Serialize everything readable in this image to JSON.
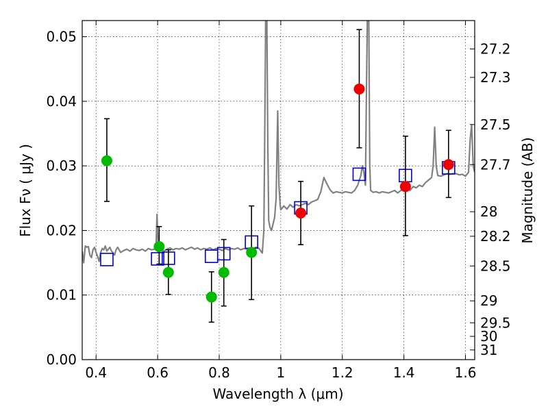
{
  "chart_data": {
    "type": "scatter",
    "xlabel": "Wavelength  λ (μm)",
    "ylabel_left": "Flux  Fν  ( μJy )",
    "ylabel_right": "Magnitude (AB)",
    "xlim": [
      0.355,
      1.63
    ],
    "ylim": [
      0.0,
      0.0525
    ],
    "grid": true,
    "x_ticks": [
      0.4,
      0.6,
      0.8,
      1.0,
      1.2,
      1.4,
      1.6
    ],
    "x_tick_labels": [
      "0.4",
      "0.6",
      "0.8",
      "1",
      "1.2",
      "1.4",
      "1.6"
    ],
    "y_ticks": [
      0.0,
      0.01,
      0.02,
      0.03,
      0.04,
      0.05
    ],
    "y_tick_labels": [
      "0.00",
      "0.01",
      "0.02",
      "0.03",
      "0.04",
      "0.05"
    ],
    "right_ticks": [
      {
        "label": "27.2",
        "flux": 0.0481
      },
      {
        "label": "27.3",
        "flux": 0.0437
      },
      {
        "label": "27.5",
        "flux": 0.0364
      },
      {
        "label": "27.7",
        "flux": 0.0302
      },
      {
        "label": "28",
        "flux": 0.0229
      },
      {
        "label": "28.2",
        "flux": 0.0191
      },
      {
        "label": "28.5",
        "flux": 0.0145
      },
      {
        "label": "29",
        "flux": 0.0091
      },
      {
        "label": "29.5",
        "flux": 0.0057
      },
      {
        "label": "30",
        "flux": 0.0036
      },
      {
        "label": "31",
        "flux": 0.0015
      }
    ],
    "series": [
      {
        "kind": "green_points",
        "color": "#00bb00",
        "points": [
          {
            "x": 0.435,
            "y": 0.0308,
            "err_low": 0.0245,
            "err_high": 0.0373
          },
          {
            "x": 0.605,
            "y": 0.0175,
            "err_low": 0.0148,
            "err_high": 0.0206
          },
          {
            "x": 0.635,
            "y": 0.0135,
            "err_low": 0.0101,
            "err_high": 0.017
          },
          {
            "x": 0.775,
            "y": 0.0097,
            "err_low": 0.0058,
            "err_high": 0.0136
          },
          {
            "x": 0.815,
            "y": 0.0135,
            "err_low": 0.0083,
            "err_high": 0.0186
          },
          {
            "x": 0.905,
            "y": 0.0166,
            "err_low": 0.0093,
            "err_high": 0.0238
          }
        ]
      },
      {
        "kind": "red_points",
        "color": "#ee0000",
        "points": [
          {
            "x": 1.065,
            "y": 0.0227,
            "err_low": 0.0178,
            "err_high": 0.0276
          },
          {
            "x": 1.255,
            "y": 0.0419,
            "err_low": 0.0328,
            "err_high": 0.0511
          },
          {
            "x": 1.405,
            "y": 0.0268,
            "err_low": 0.0192,
            "err_high": 0.0346
          },
          {
            "x": 1.545,
            "y": 0.0302,
            "err_low": 0.0251,
            "err_high": 0.0355
          }
        ]
      },
      {
        "kind": "model_squares",
        "color": "#0000cc",
        "points": [
          {
            "x": 0.435,
            "y": 0.0155
          },
          {
            "x": 0.6,
            "y": 0.0156
          },
          {
            "x": 0.635,
            "y": 0.0157
          },
          {
            "x": 0.775,
            "y": 0.016
          },
          {
            "x": 0.815,
            "y": 0.0164
          },
          {
            "x": 0.905,
            "y": 0.0182
          },
          {
            "x": 1.065,
            "y": 0.0235
          },
          {
            "x": 1.255,
            "y": 0.0287
          },
          {
            "x": 1.405,
            "y": 0.0285
          },
          {
            "x": 1.545,
            "y": 0.0297
          }
        ]
      },
      {
        "kind": "model_spectrum",
        "color": "#808080",
        "points": [
          [
            0.355,
            0.0168
          ],
          [
            0.36,
            0.015
          ],
          [
            0.365,
            0.0176
          ],
          [
            0.37,
            0.0174
          ],
          [
            0.375,
            0.0175
          ],
          [
            0.38,
            0.0162
          ],
          [
            0.385,
            0.0158
          ],
          [
            0.39,
            0.017
          ],
          [
            0.395,
            0.0174
          ],
          [
            0.4,
            0.0166
          ],
          [
            0.405,
            0.016
          ],
          [
            0.41,
            0.0152
          ],
          [
            0.415,
            0.0166
          ],
          [
            0.42,
            0.0172
          ],
          [
            0.425,
            0.017
          ],
          [
            0.43,
            0.0176
          ],
          [
            0.435,
            0.0168
          ],
          [
            0.44,
            0.0171
          ],
          [
            0.445,
            0.0174
          ],
          [
            0.45,
            0.0168
          ],
          [
            0.455,
            0.0166
          ],
          [
            0.46,
            0.0162
          ],
          [
            0.465,
            0.017
          ],
          [
            0.47,
            0.0174
          ],
          [
            0.475,
            0.017
          ],
          [
            0.48,
            0.0166
          ],
          [
            0.49,
            0.0169
          ],
          [
            0.5,
            0.0171
          ],
          [
            0.51,
            0.0168
          ],
          [
            0.52,
            0.0172
          ],
          [
            0.53,
            0.017
          ],
          [
            0.54,
            0.0169
          ],
          [
            0.55,
            0.0171
          ],
          [
            0.56,
            0.0168
          ],
          [
            0.57,
            0.0172
          ],
          [
            0.58,
            0.017
          ],
          [
            0.59,
            0.0171
          ],
          [
            0.595,
            0.0178
          ],
          [
            0.598,
            0.0225
          ],
          [
            0.601,
            0.0185
          ],
          [
            0.605,
            0.017
          ],
          [
            0.61,
            0.0172
          ],
          [
            0.62,
            0.0168
          ],
          [
            0.63,
            0.0171
          ],
          [
            0.64,
            0.0173
          ],
          [
            0.65,
            0.017
          ],
          [
            0.66,
            0.0172
          ],
          [
            0.67,
            0.0171
          ],
          [
            0.68,
            0.0173
          ],
          [
            0.69,
            0.017
          ],
          [
            0.7,
            0.0172
          ],
          [
            0.71,
            0.0174
          ],
          [
            0.72,
            0.0171
          ],
          [
            0.73,
            0.0173
          ],
          [
            0.74,
            0.017
          ],
          [
            0.75,
            0.0172
          ],
          [
            0.76,
            0.0171
          ],
          [
            0.77,
            0.0173
          ],
          [
            0.78,
            0.017
          ],
          [
            0.79,
            0.0172
          ],
          [
            0.8,
            0.0171
          ],
          [
            0.81,
            0.0169
          ],
          [
            0.82,
            0.0172
          ],
          [
            0.83,
            0.017
          ],
          [
            0.84,
            0.0172
          ],
          [
            0.85,
            0.0171
          ],
          [
            0.86,
            0.0173
          ],
          [
            0.87,
            0.017
          ],
          [
            0.88,
            0.0172
          ],
          [
            0.89,
            0.0171
          ],
          [
            0.9,
            0.0173
          ],
          [
            0.91,
            0.0172
          ],
          [
            0.92,
            0.0174
          ],
          [
            0.93,
            0.0172
          ],
          [
            0.935,
            0.0168
          ],
          [
            0.94,
            0.0165
          ],
          [
            0.945,
            0.02
          ],
          [
            0.948,
            0.035
          ],
          [
            0.951,
            0.0525
          ],
          [
            0.955,
            0.0525
          ],
          [
            0.958,
            0.033
          ],
          [
            0.961,
            0.0215
          ],
          [
            0.965,
            0.0205
          ],
          [
            0.97,
            0.02
          ],
          [
            0.975,
            0.021
          ],
          [
            0.98,
            0.022
          ],
          [
            0.985,
            0.025
          ],
          [
            0.99,
            0.0385
          ],
          [
            0.994,
            0.027
          ],
          [
            0.998,
            0.024
          ],
          [
            1.0,
            0.0232
          ],
          [
            1.01,
            0.0238
          ],
          [
            1.02,
            0.0233
          ],
          [
            1.03,
            0.024
          ],
          [
            1.04,
            0.0236
          ],
          [
            1.05,
            0.024
          ],
          [
            1.06,
            0.0238
          ],
          [
            1.07,
            0.024
          ],
          [
            1.08,
            0.0242
          ],
          [
            1.09,
            0.024
          ],
          [
            1.1,
            0.0244
          ],
          [
            1.11,
            0.0246
          ],
          [
            1.12,
            0.0248
          ],
          [
            1.13,
            0.026
          ],
          [
            1.14,
            0.0282
          ],
          [
            1.15,
            0.0272
          ],
          [
            1.16,
            0.0263
          ],
          [
            1.17,
            0.0258
          ],
          [
            1.18,
            0.026
          ],
          [
            1.19,
            0.0259
          ],
          [
            1.2,
            0.0258
          ],
          [
            1.21,
            0.026
          ],
          [
            1.22,
            0.0259
          ],
          [
            1.23,
            0.0258
          ],
          [
            1.24,
            0.0262
          ],
          [
            1.25,
            0.027
          ],
          [
            1.26,
            0.0285
          ],
          [
            1.265,
            0.03
          ],
          [
            1.27,
            0.029
          ],
          [
            1.275,
            0.027
          ],
          [
            1.278,
            0.04
          ],
          [
            1.281,
            0.0525
          ],
          [
            1.286,
            0.0525
          ],
          [
            1.289,
            0.03
          ],
          [
            1.292,
            0.0262
          ],
          [
            1.3,
            0.0259
          ],
          [
            1.31,
            0.026
          ],
          [
            1.32,
            0.0258
          ],
          [
            1.33,
            0.026
          ],
          [
            1.34,
            0.0259
          ],
          [
            1.35,
            0.0258
          ],
          [
            1.36,
            0.026
          ],
          [
            1.37,
            0.0262
          ],
          [
            1.38,
            0.0258
          ],
          [
            1.39,
            0.0262
          ],
          [
            1.4,
            0.0264
          ],
          [
            1.41,
            0.0266
          ],
          [
            1.42,
            0.0262
          ],
          [
            1.43,
            0.0268
          ],
          [
            1.44,
            0.0266
          ],
          [
            1.45,
            0.027
          ],
          [
            1.46,
            0.0268
          ],
          [
            1.47,
            0.0274
          ],
          [
            1.48,
            0.0278
          ],
          [
            1.49,
            0.0282
          ],
          [
            1.495,
            0.03
          ],
          [
            1.5,
            0.036
          ],
          [
            1.505,
            0.03
          ],
          [
            1.51,
            0.0285
          ],
          [
            1.52,
            0.0284
          ],
          [
            1.53,
            0.0286
          ],
          [
            1.54,
            0.0288
          ],
          [
            1.55,
            0.0287
          ],
          [
            1.56,
            0.0288
          ],
          [
            1.57,
            0.0288
          ],
          [
            1.58,
            0.0286
          ],
          [
            1.59,
            0.0287
          ],
          [
            1.6,
            0.0284
          ],
          [
            1.61,
            0.029
          ],
          [
            1.615,
            0.034
          ],
          [
            1.62,
            0.0363
          ],
          [
            1.625,
            0.03
          ],
          [
            1.63,
            0.029
          ]
        ]
      }
    ]
  }
}
